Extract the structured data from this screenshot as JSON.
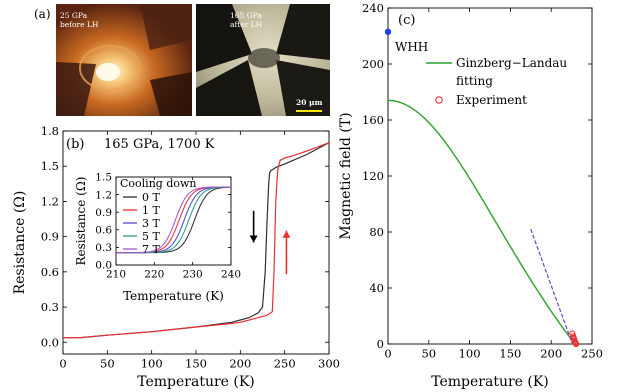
{
  "panel_a": {
    "label": "(a)",
    "photo_left": {
      "line1": "25 GPa",
      "line2": "before LH"
    },
    "photo_right": {
      "line1": "165 GPa",
      "line2": "after LH",
      "scalebar": "20 μm"
    }
  },
  "panel_b": {
    "label": "(b)",
    "annotation": "165 GPa, 1700 K",
    "inset_title": "Cooling down"
  },
  "panel_c": {
    "label": "(c)",
    "legend": {
      "fit": "Ginzberg−Landau",
      "fit2": "fitting",
      "exp": "Experiment",
      "whh": "WHH"
    }
  },
  "chart_data": [
    {
      "id": "b-main",
      "type": "line",
      "xlabel": "Temperature (K)",
      "ylabel": "Resistance (Ω)",
      "xlim": [
        0,
        300
      ],
      "ylim": [
        -0.1,
        1.8
      ],
      "xticks": [
        0,
        50,
        100,
        150,
        200,
        250,
        300
      ],
      "yticks": [
        0.0,
        0.3,
        0.6,
        0.9,
        1.2,
        1.5,
        1.8
      ],
      "series": [
        {
          "color": "#303030",
          "x": [
            0,
            20,
            50,
            100,
            150,
            190,
            200,
            210,
            220,
            225,
            228,
            230,
            232,
            233,
            234,
            236,
            240,
            250,
            275,
            300
          ],
          "y": [
            0.04,
            0.04,
            0.06,
            0.09,
            0.13,
            0.17,
            0.19,
            0.21,
            0.25,
            0.3,
            0.6,
            1.0,
            1.35,
            1.44,
            1.46,
            1.47,
            1.49,
            1.52,
            1.6,
            1.7
          ]
        },
        {
          "color": "#e8312f",
          "x": [
            0,
            20,
            50,
            100,
            150,
            190,
            200,
            210,
            220,
            230,
            236,
            238,
            240,
            242,
            243,
            245,
            250,
            260,
            275,
            300
          ],
          "y": [
            0.04,
            0.04,
            0.06,
            0.09,
            0.13,
            0.16,
            0.17,
            0.19,
            0.21,
            0.23,
            0.26,
            0.6,
            1.2,
            1.45,
            1.5,
            1.55,
            1.57,
            1.59,
            1.63,
            1.7
          ]
        }
      ],
      "arrows": [
        {
          "direction": "down",
          "x": 215,
          "y_from": 1.12,
          "y_to": 0.85,
          "color": "#000000"
        },
        {
          "direction": "up",
          "x": 252,
          "y_from": 0.58,
          "y_to": 0.95,
          "color": "#e8312f"
        }
      ]
    },
    {
      "id": "b-inset",
      "type": "line",
      "xlabel": "Temperature (K)",
      "ylabel": "Resistance (Ω)",
      "xlim": [
        210,
        240
      ],
      "ylim": [
        0,
        1.5
      ],
      "xticks": [
        210,
        220,
        230,
        240
      ],
      "yticks": [
        0.0,
        0.3,
        0.6,
        0.9,
        1.2,
        1.5
      ],
      "series": [
        {
          "name": "0 T",
          "color": "#303030",
          "tc": 230.5
        },
        {
          "name": "1 T",
          "color": "#e8312f",
          "tc": 226.5
        },
        {
          "name": "3 T",
          "color": "#4a4fd4",
          "tc": 227.8
        },
        {
          "name": "5 T",
          "color": "#2b9b8a",
          "tc": 229.0
        },
        {
          "name": "7 T",
          "color": "#a855c8",
          "tc": 225.5
        }
      ],
      "r_low": 0.21,
      "r_high": 1.33,
      "width_k": 1.6
    },
    {
      "id": "c",
      "type": "line",
      "xlabel": "Temperature (K)",
      "ylabel": "Magnetic field (T)",
      "xlim": [
        0,
        250
      ],
      "ylim": [
        0,
        240
      ],
      "xticks": [
        0,
        50,
        100,
        150,
        200,
        250
      ],
      "yticks": [
        0,
        40,
        80,
        120,
        160,
        200,
        240
      ],
      "gl_fit": {
        "name": "Ginzberg−Landau fitting",
        "color": "#2ca02c",
        "hc2_0": 174,
        "tc": 229
      },
      "whh_point": {
        "name": "WHH",
        "x": 0,
        "y": 223,
        "color": "#1e3ff0"
      },
      "experiment": {
        "name": "Experiment",
        "color": "#e8312f",
        "x": [
          226,
          227,
          227.5,
          228,
          228.5,
          229,
          229.5,
          230,
          230.5
        ],
        "y": [
          7.5,
          5.5,
          4.5,
          3.5,
          2.5,
          1.5,
          1.0,
          0.5,
          0.0
        ]
      },
      "dashed_line": {
        "color": "#7a3fc8",
        "x": [
          175,
          226
        ],
        "y": [
          82,
          0
        ]
      }
    }
  ]
}
